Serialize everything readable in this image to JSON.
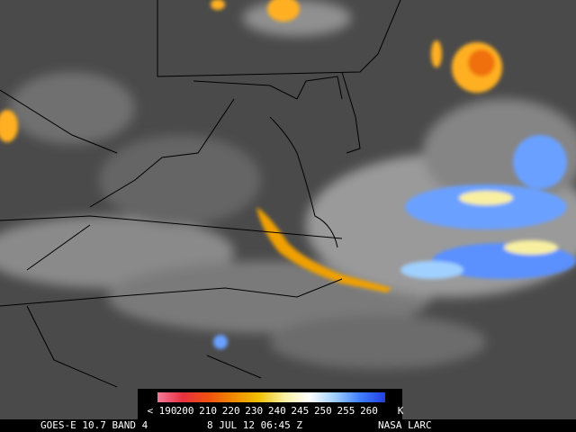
{
  "colorbar": {
    "labels": [
      "< 190",
      "200",
      "210",
      "220",
      "230",
      "240",
      "245",
      "250",
      "255",
      "260"
    ],
    "unit": "K",
    "colors": [
      "#f27a9a",
      "#e83040",
      "#f05010",
      "#f08a00",
      "#f0c000",
      "#f8f0a0",
      "#ffffff",
      "#a0d0ff",
      "#4080ff",
      "#2040e0"
    ]
  },
  "footer": {
    "satellite": "GOES-E 10.7 BAND 4",
    "time": "8 JUL 12 06:45 Z",
    "source": "NASA LARC"
  }
}
